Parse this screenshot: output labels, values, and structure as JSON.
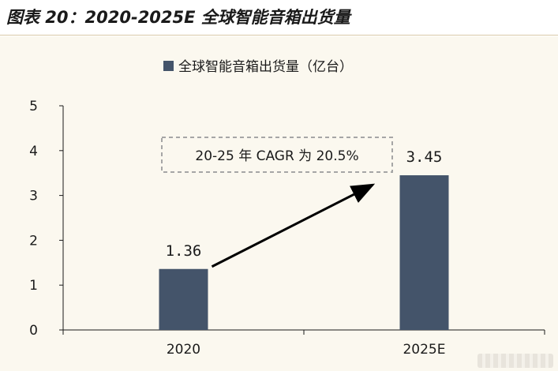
{
  "header": {
    "title": "图表 20：2020-2025E 全球智能音箱出货量"
  },
  "colors": {
    "bar": "#44546a",
    "background": "#fbf8ef",
    "axis": "#1a1a1a",
    "annotation_border": "#a6a6a6"
  },
  "chart_data": {
    "type": "bar",
    "title": "",
    "xlabel": "",
    "ylabel": "",
    "categories": [
      "2020",
      "2025E"
    ],
    "series": [
      {
        "name": "全球智能音箱出货量（亿台）",
        "values": [
          1.36,
          3.45
        ]
      }
    ],
    "data_labels": [
      "1.36",
      "3.45"
    ],
    "ylim": [
      0,
      5
    ],
    "yticks": [
      "0",
      "1",
      "2",
      "3",
      "4",
      "5"
    ],
    "legend_position": "top-center",
    "grid": false,
    "annotation": {
      "text": "20-25 年 CAGR 为 20.5%",
      "arrow": "from 2020 bar to 2025E bar"
    }
  }
}
